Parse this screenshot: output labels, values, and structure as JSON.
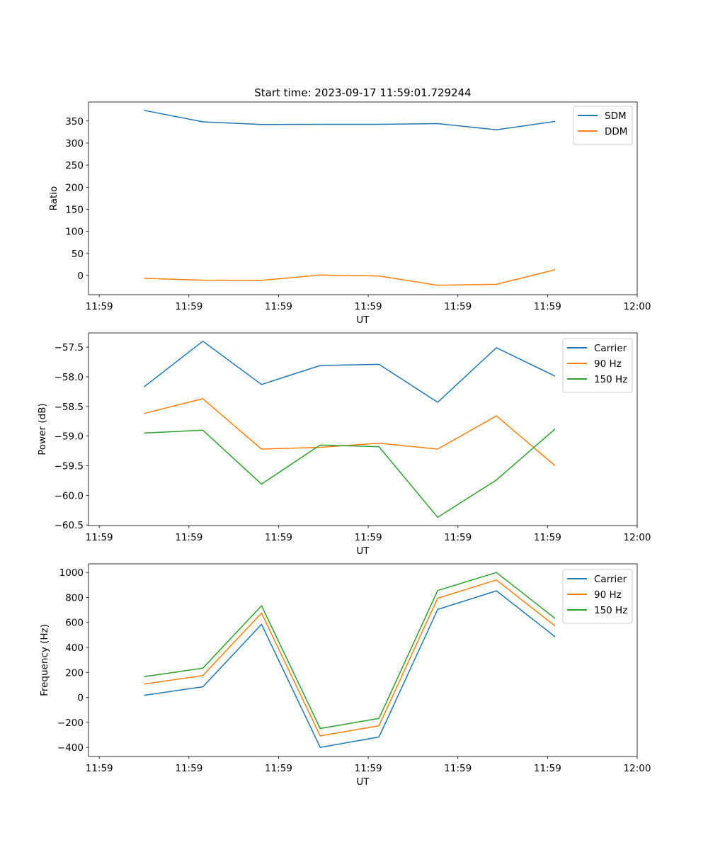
{
  "chart_data": [
    {
      "type": "line",
      "title": "Start time: 2023-09-17 11:59:01.729244",
      "xlabel": "UT",
      "ylabel": "Ratio",
      "x_units": "seconds after 11:59:00",
      "xlim": [
        -1.2,
        60
      ],
      "xticks": [
        0,
        10,
        20,
        30,
        40,
        50,
        60
      ],
      "xtick_labels": [
        "11:59",
        "11:59",
        "11:59",
        "11:59",
        "11:59",
        "11:59",
        "12:00"
      ],
      "ylim": [
        -43.4,
        393
      ],
      "yticks": [
        0,
        50,
        100,
        150,
        200,
        250,
        300,
        350
      ],
      "ytick_labels": [
        "0",
        "50",
        "100",
        "150",
        "200",
        "250",
        "300",
        "350"
      ],
      "legend": "top-right",
      "x": [
        5.0,
        11.55,
        18.1,
        24.65,
        31.2,
        37.75,
        44.3,
        50.85
      ],
      "series": [
        {
          "name": "SDM",
          "color": "#1f77b4",
          "values": [
            374,
            348,
            342,
            342.5,
            342.5,
            344,
            330,
            349
          ]
        },
        {
          "name": "DDM",
          "color": "#ff7f0e",
          "values": [
            -6.4,
            -10.7,
            -11,
            1,
            -1,
            -22,
            -20,
            13
          ]
        }
      ]
    },
    {
      "type": "line",
      "title": "",
      "xlabel": "UT",
      "ylabel": "Power (dB)",
      "x_units": "seconds after 11:59:00",
      "xlim": [
        -1.2,
        60
      ],
      "xticks": [
        0,
        10,
        20,
        30,
        40,
        50,
        60
      ],
      "xtick_labels": [
        "11:59",
        "11:59",
        "11:59",
        "11:59",
        "11:59",
        "11:59",
        "12:00"
      ],
      "ylim": [
        -60.51,
        -57.26
      ],
      "yticks": [
        -57.5,
        -58.0,
        -58.5,
        -59.0,
        -59.5,
        -60.0,
        -60.5
      ],
      "ytick_labels": [
        "−57.5",
        "−58.0",
        "−58.5",
        "−59.0",
        "−59.5",
        "−60.0",
        "−60.5"
      ],
      "legend": "top-right",
      "x": [
        5.0,
        11.55,
        18.1,
        24.65,
        31.2,
        37.75,
        44.3,
        50.85
      ],
      "series": [
        {
          "name": "Carrier",
          "color": "#1f77b4",
          "values": [
            -58.17,
            -57.4,
            -58.13,
            -57.81,
            -57.79,
            -58.43,
            -57.51,
            -57.99
          ]
        },
        {
          "name": "90 Hz",
          "color": "#ff7f0e",
          "values": [
            -58.62,
            -58.37,
            -59.22,
            -59.19,
            -59.12,
            -59.22,
            -58.66,
            -59.5
          ]
        },
        {
          "name": "150 Hz",
          "color": "#2ca02c",
          "values": [
            -58.95,
            -58.9,
            -59.81,
            -59.15,
            -59.18,
            -60.37,
            -59.74,
            -58.88
          ]
        }
      ]
    },
    {
      "type": "line",
      "title": "",
      "xlabel": "UT",
      "ylabel": "Frequency (Hz)",
      "x_units": "seconds after 11:59:00",
      "xlim": [
        -1.2,
        60
      ],
      "xticks": [
        0,
        10,
        20,
        30,
        40,
        50,
        60
      ],
      "xtick_labels": [
        "11:59",
        "11:59",
        "11:59",
        "11:59",
        "11:59",
        "11:59",
        "12:00"
      ],
      "ylim": [
        -473,
        1069
      ],
      "yticks": [
        -400,
        -200,
        0,
        200,
        400,
        600,
        800,
        1000
      ],
      "ytick_labels": [
        "−400",
        "−200",
        "0",
        "200",
        "400",
        "600",
        "800",
        "1000"
      ],
      "legend": "top-right",
      "x": [
        5.0,
        11.55,
        18.1,
        24.65,
        31.2,
        37.75,
        44.3,
        50.85
      ],
      "series": [
        {
          "name": "Carrier",
          "color": "#1f77b4",
          "values": [
            17,
            85,
            585,
            -400,
            -317,
            704,
            853,
            485
          ]
        },
        {
          "name": "90 Hz",
          "color": "#ff7f0e",
          "values": [
            107,
            175,
            675,
            -308,
            -227,
            794,
            940,
            571
          ]
        },
        {
          "name": "150 Hz",
          "color": "#2ca02c",
          "values": [
            166,
            234,
            734,
            -249,
            -168,
            855,
            1000,
            632
          ]
        }
      ]
    }
  ]
}
